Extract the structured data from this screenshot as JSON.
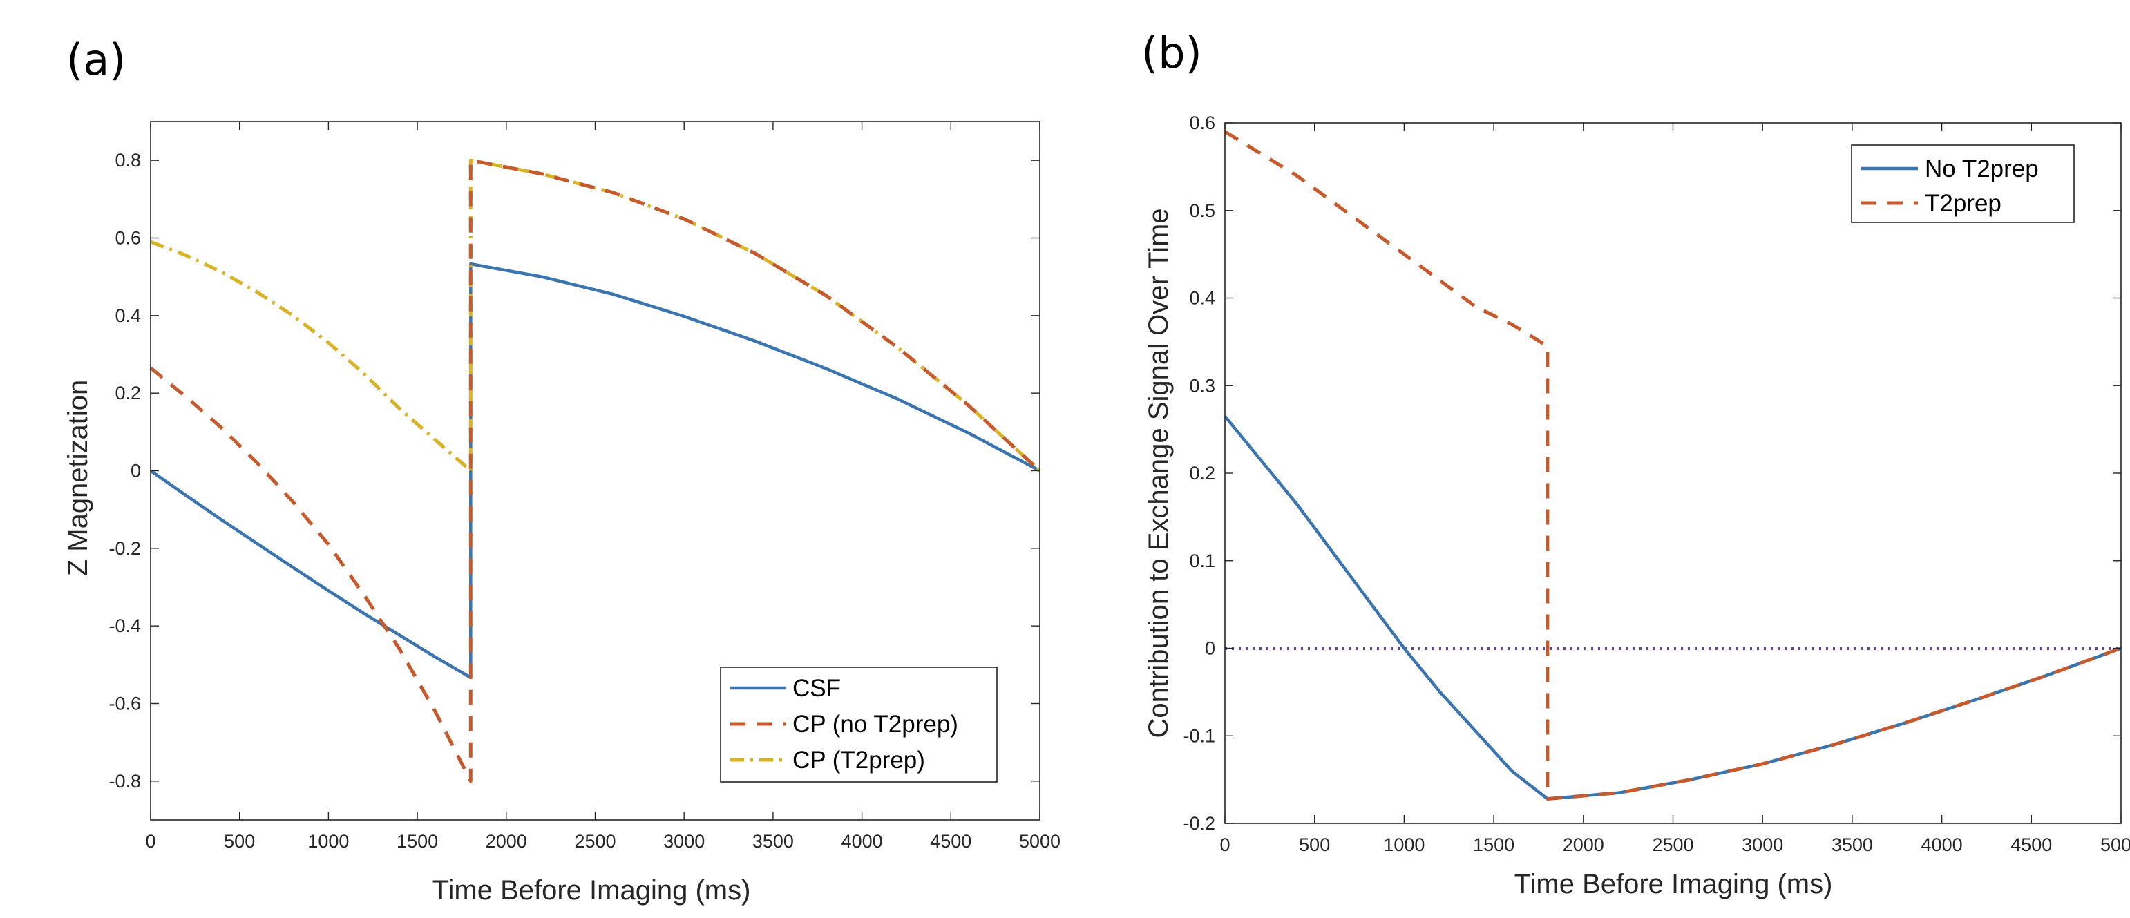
{
  "chart_data": [
    {
      "type": "line",
      "panel_label": "(a)",
      "title": "",
      "xlabel": "Time Before Imaging (ms)",
      "ylabel": "Z Magnetization",
      "xlim": [
        0,
        5000
      ],
      "ylim": [
        -0.9,
        0.9
      ],
      "xticks": [
        0,
        500,
        1000,
        1500,
        2000,
        2500,
        3000,
        3500,
        4000,
        4500,
        5000
      ],
      "xtick_labels": [
        "0",
        "500",
        "1000",
        "1500",
        "2000",
        "2500",
        "3000",
        "3500",
        "4000",
        "4500",
        "5000"
      ],
      "yticks": [
        -0.8,
        -0.6,
        -0.4,
        -0.2,
        0,
        0.2,
        0.4,
        0.6,
        0.8
      ],
      "ytick_labels": [
        "-0.8",
        "-0.6",
        "-0.4",
        "-0.2",
        "0",
        "0.2",
        "0.4",
        "0.6",
        "0.8"
      ],
      "grid": false,
      "legend_position": "bottom-right",
      "series": [
        {
          "name": "CSF",
          "color": "#3a75b0",
          "dash": "solid",
          "x": [
            0,
            200,
            400,
            600,
            800,
            1000,
            1200,
            1400,
            1600,
            1800,
            1800,
            1800,
            2200,
            2600,
            3000,
            3400,
            3800,
            4200,
            4600,
            5000
          ],
          "y": [
            0,
            -0.064,
            -0.127,
            -0.188,
            -0.249,
            -0.309,
            -0.368,
            -0.424,
            -0.48,
            -0.533,
            0,
            0.533,
            0.5,
            0.455,
            0.398,
            0.334,
            0.263,
            0.185,
            0.097,
            0
          ]
        },
        {
          "name": "CP (no T2prep)",
          "color": "#c65a2c",
          "dash": "dashed",
          "x": [
            0,
            200,
            400,
            600,
            800,
            1000,
            1200,
            1400,
            1600,
            1800,
            1800,
            1800,
            2200,
            2600,
            3000,
            3400,
            3800,
            4200,
            4600,
            5000
          ],
          "y": [
            0.265,
            0.19,
            0.11,
            0.02,
            -0.08,
            -0.19,
            -0.32,
            -0.46,
            -0.62,
            -0.8,
            0,
            0.8,
            0.765,
            0.717,
            0.649,
            0.56,
            0.451,
            0.318,
            0.168,
            0
          ]
        },
        {
          "name": "CP (T2prep)",
          "color": "#d9b227",
          "dash": "dashdot",
          "x": [
            0,
            200,
            400,
            600,
            800,
            1000,
            1200,
            1400,
            1600,
            1800,
            1800,
            2200,
            2600,
            3000,
            3400,
            3800,
            4200,
            4600,
            5000
          ],
          "y": [
            0.59,
            0.555,
            0.512,
            0.46,
            0.4,
            0.33,
            0.25,
            0.16,
            0.08,
            0,
            0.8,
            0.765,
            0.717,
            0.649,
            0.56,
            0.451,
            0.318,
            0.168,
            0
          ]
        }
      ]
    },
    {
      "type": "line",
      "panel_label": "(b)",
      "title": "",
      "xlabel": "Time Before Imaging (ms)",
      "ylabel": "Contribution to Exchange Signal Over Time",
      "xlim": [
        0,
        5000
      ],
      "ylim": [
        -0.2,
        0.6
      ],
      "xticks": [
        0,
        500,
        1000,
        1500,
        2000,
        2500,
        3000,
        3500,
        4000,
        4500,
        5000
      ],
      "xtick_labels": [
        "0",
        "500",
        "1000",
        "1500",
        "2000",
        "2500",
        "3000",
        "3500",
        "4000",
        "4500",
        "5000"
      ],
      "yticks": [
        -0.2,
        -0.1,
        0,
        0.1,
        0.2,
        0.3,
        0.4,
        0.5,
        0.6
      ],
      "ytick_labels": [
        "-0.2",
        "-0.1",
        "0",
        "0.1",
        "0.2",
        "0.3",
        "0.4",
        "0.5",
        "0.6"
      ],
      "grid": false,
      "legend_position": "top-right",
      "series": [
        {
          "name": "No T2prep",
          "color": "#3a75b0",
          "dash": "solid",
          "x": [
            0,
            200,
            400,
            600,
            800,
            1000,
            1200,
            1400,
            1600,
            1800,
            2200,
            2600,
            3000,
            3400,
            3800,
            4200,
            4600,
            5000
          ],
          "y": [
            0.265,
            0.215,
            0.165,
            0.11,
            0.055,
            0.0,
            -0.05,
            -0.095,
            -0.14,
            -0.172,
            -0.165,
            -0.15,
            -0.132,
            -0.11,
            -0.085,
            -0.058,
            -0.03,
            0
          ]
        },
        {
          "name": "T2prep",
          "color": "#c65a2c",
          "dash": "dashed",
          "x": [
            0,
            200,
            400,
            600,
            800,
            1000,
            1200,
            1400,
            1600,
            1800,
            1800,
            1800,
            2200,
            2600,
            3000,
            3400,
            3800,
            4200,
            4600,
            5000
          ],
          "y": [
            0.59,
            0.565,
            0.54,
            0.51,
            0.48,
            0.45,
            0.42,
            0.39,
            0.37,
            0.345,
            0,
            -0.172,
            -0.165,
            -0.15,
            -0.132,
            -0.11,
            -0.085,
            -0.058,
            -0.03,
            0
          ]
        },
        {
          "name": "zero reference",
          "color": "#6a3d9a",
          "dash": "dotted",
          "x": [
            0,
            5000
          ],
          "y": [
            0,
            0
          ]
        }
      ],
      "legend_series": [
        "No T2prep",
        "T2prep"
      ]
    }
  ]
}
